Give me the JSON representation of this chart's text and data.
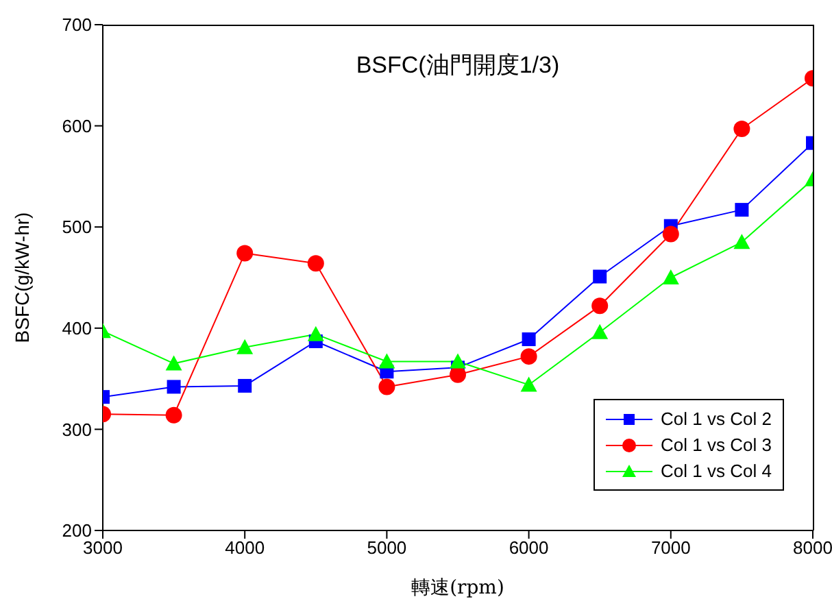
{
  "chart_data": {
    "type": "line",
    "title": "BSFC(油門開度1/3)",
    "xlabel": "轉速(rpm)",
    "ylabel": "BSFC(g/kW-hr)",
    "x": [
      3000,
      3500,
      4000,
      4500,
      5000,
      5500,
      6000,
      6500,
      7000,
      7500,
      8000
    ],
    "series": [
      {
        "name": "Col 1 vs Col 2",
        "color": "#0000ff",
        "marker": "square",
        "values": [
          332,
          342,
          343,
          387,
          357,
          361,
          389,
          451,
          501,
          517,
          583
        ]
      },
      {
        "name": "Col 1 vs Col 3",
        "color": "#ff0000",
        "marker": "circle",
        "values": [
          315,
          314,
          474,
          464,
          342,
          354,
          372,
          422,
          493,
          597,
          647
        ]
      },
      {
        "name": "Col 1 vs Col 4",
        "color": "#00ff00",
        "marker": "triangle",
        "values": [
          397,
          365,
          381,
          394,
          367,
          367,
          344,
          396,
          450,
          485,
          547
        ]
      }
    ],
    "xlim": [
      3000,
      8000
    ],
    "xticks": [
      3000,
      4000,
      5000,
      6000,
      7000,
      8000
    ],
    "ylim": [
      200,
      700
    ],
    "yticks": [
      200,
      300,
      400,
      500,
      600,
      700
    ],
    "grid": false,
    "legend": "bottom right",
    "line_style": "solid"
  }
}
